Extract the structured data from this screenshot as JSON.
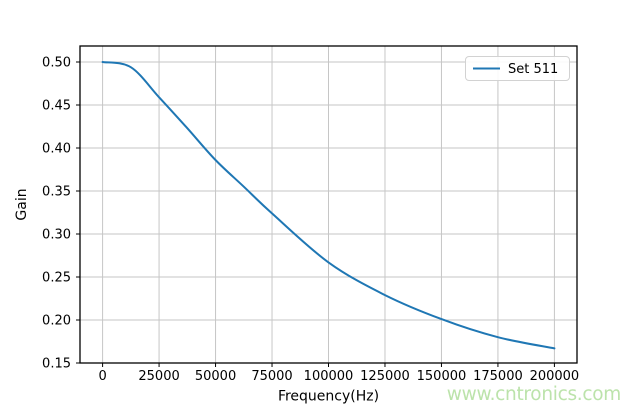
{
  "figure": {
    "watermark": "www.cntronics.com"
  },
  "chart_data": {
    "type": "line",
    "title": "",
    "xlabel": "Frequency(Hz)",
    "ylabel": "Gain",
    "xlim": [
      -10000,
      210000
    ],
    "ylim": [
      0.15,
      0.5186
    ],
    "xticks": [
      0,
      25000,
      50000,
      75000,
      100000,
      125000,
      150000,
      175000,
      200000
    ],
    "xtick_labels": [
      "0",
      "25000",
      "50000",
      "75000",
      "100000",
      "125000",
      "150000",
      "175000",
      "200000"
    ],
    "yticks": [
      0.15,
      0.2,
      0.25,
      0.3,
      0.35,
      0.4,
      0.45,
      0.5
    ],
    "ytick_labels": [
      "0.15",
      "0.20",
      "0.25",
      "0.30",
      "0.35",
      "0.40",
      "0.45",
      "0.50"
    ],
    "grid": true,
    "legend": {
      "position": "upper right",
      "entries": [
        {
          "label": "Set 511",
          "color": "#1f77b4"
        }
      ]
    },
    "series": [
      {
        "name": "Set 511",
        "color": "#1f77b4",
        "x": [
          0,
          12500,
          25000,
          37500,
          50000,
          62500,
          75000,
          100000,
          125000,
          150000,
          175000,
          200000
        ],
        "y": [
          0.5,
          0.494,
          0.459,
          0.423,
          0.386,
          0.355,
          0.324,
          0.267,
          0.229,
          0.201,
          0.18,
          0.167
        ]
      }
    ]
  },
  "colors": {
    "line": "#1f77b4",
    "grid": "#c6c6c6",
    "spine": "#000000",
    "tick_text": "#000000",
    "watermark": "#bce3ab",
    "legend_border": "#d2d2d2",
    "legend_background": "#ffffff",
    "background": "#ffffff"
  }
}
